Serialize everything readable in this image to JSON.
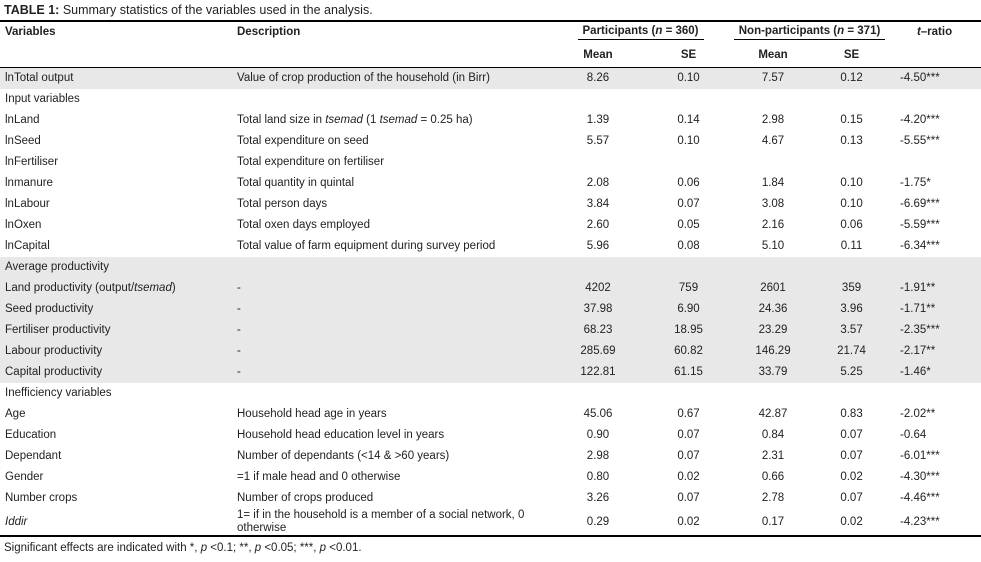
{
  "table_title": {
    "label": "TABLE 1:",
    "text": "Summary statistics of the variables used in the analysis."
  },
  "columns": {
    "variables": "Variables",
    "description": "Description",
    "participants_group": "Participants ([i]n[/i] = 360)",
    "nonparticipants_group": "Non-participants ([i]n[/i] = 371)",
    "mean": "Mean",
    "se": "SE",
    "t_ratio": "[i]t[/i]–ratio"
  },
  "colors": {
    "shaded_row": "#e8e8e8",
    "rule": "#000000",
    "text": "#222222"
  },
  "rows": [
    {
      "shaded": true,
      "variable": "lnTotal output",
      "description": "Value of crop production of the household (in Birr)",
      "p_mean": "8.26",
      "p_se": "0.10",
      "n_mean": "7.57",
      "n_se": "0.12",
      "t_ratio": "-4.50***"
    },
    {
      "shaded": false,
      "section": "Input variables"
    },
    {
      "shaded": false,
      "variable": "lnLand",
      "description": "Total land size in [i]tsemad[/i] (1 [i]tsemad[/i] = 0.25 ha)",
      "p_mean": "1.39",
      "p_se": "0.14",
      "n_mean": "2.98",
      "n_se": "0.15",
      "t_ratio": "-4.20***"
    },
    {
      "shaded": false,
      "variable": "lnSeed",
      "description": "Total expenditure on seed",
      "p_mean": "5.57",
      "p_se": "0.10",
      "n_mean": "4.67",
      "n_se": "0.13",
      "t_ratio": "-5.55***"
    },
    {
      "shaded": false,
      "variable": "lnFertiliser",
      "description": "Total expenditure on fertiliser",
      "p_mean": "",
      "p_se": "",
      "n_mean": "",
      "n_se": "",
      "t_ratio": ""
    },
    {
      "shaded": false,
      "variable": "lnmanure",
      "description": "Total quantity in quintal",
      "p_mean": "2.08",
      "p_se": "0.06",
      "n_mean": "1.84",
      "n_se": "0.10",
      "t_ratio": "-1.75*"
    },
    {
      "shaded": false,
      "variable": "lnLabour",
      "description": "Total person days",
      "p_mean": "3.84",
      "p_se": "0.07",
      "n_mean": "3.08",
      "n_se": "0.10",
      "t_ratio": "-6.69***"
    },
    {
      "shaded": false,
      "variable": "lnOxen",
      "description": "Total oxen days employed",
      "p_mean": "2.60",
      "p_se": "0.05",
      "n_mean": "2.16",
      "n_se": "0.06",
      "t_ratio": "-5.59***"
    },
    {
      "shaded": false,
      "variable": "lnCapital",
      "description": "Total value of farm equipment during survey period",
      "p_mean": "5.96",
      "p_se": "0.08",
      "n_mean": "5.10",
      "n_se": "0.11",
      "t_ratio": "-6.34***"
    },
    {
      "shaded": true,
      "section": "Average productivity"
    },
    {
      "shaded": true,
      "variable": "Land productivity (output/[i]tsemad[/i])",
      "description": "-",
      "p_mean": "4202",
      "p_se": "759",
      "n_mean": "2601",
      "n_se": "359",
      "t_ratio": "-1.91**"
    },
    {
      "shaded": true,
      "variable": "Seed productivity",
      "description": "-",
      "p_mean": "37.98",
      "p_se": "6.90",
      "n_mean": "24.36",
      "n_se": "3.96",
      "t_ratio": "-1.71**"
    },
    {
      "shaded": true,
      "variable": "Fertiliser productivity",
      "description": "-",
      "p_mean": "68.23",
      "p_se": "18.95",
      "n_mean": "23.29",
      "n_se": "3.57",
      "t_ratio": "-2.35***"
    },
    {
      "shaded": true,
      "variable": "Labour productivity",
      "description": "-",
      "p_mean": "285.69",
      "p_se": "60.82",
      "n_mean": "146.29",
      "n_se": "21.74",
      "t_ratio": "-2.17**"
    },
    {
      "shaded": true,
      "variable": "Capital productivity",
      "description": "-",
      "p_mean": "122.81",
      "p_se": "61.15",
      "n_mean": "33.79",
      "n_se": "5.25",
      "t_ratio": "-1.46*"
    },
    {
      "shaded": false,
      "section": "Inefficiency variables"
    },
    {
      "shaded": false,
      "variable": "Age",
      "description": "Household head age in years",
      "p_mean": "45.06",
      "p_se": "0.67",
      "n_mean": "42.87",
      "n_se": "0.83",
      "t_ratio": "-2.02**"
    },
    {
      "shaded": false,
      "variable": "Education",
      "description": "Household head education level in years",
      "p_mean": "0.90",
      "p_se": "0.07",
      "n_mean": "0.84",
      "n_se": "0.07",
      "t_ratio": "-0.64"
    },
    {
      "shaded": false,
      "variable": "Dependant",
      "description": "Number of dependants (<14 & >60 years)",
      "p_mean": "2.98",
      "p_se": "0.07",
      "n_mean": "2.31",
      "n_se": "0.07",
      "t_ratio": "-6.01***"
    },
    {
      "shaded": false,
      "variable": "Gender",
      "description": "=1 if male head and 0 otherwise",
      "p_mean": "0.80",
      "p_se": "0.02",
      "n_mean": "0.66",
      "n_se": "0.02",
      "t_ratio": "-4.30***"
    },
    {
      "shaded": false,
      "variable": "Number crops",
      "description": "Number of crops produced",
      "p_mean": "3.26",
      "p_se": "0.07",
      "n_mean": "2.78",
      "n_se": "0.07",
      "t_ratio": "-4.46***"
    },
    {
      "shaded": false,
      "variable": "[i]Iddir[/i]",
      "description": "1= if in the household is a member of a social network, 0 otherwise",
      "p_mean": "0.29",
      "p_se": "0.02",
      "n_mean": "0.17",
      "n_se": "0.02",
      "t_ratio": "-4.23***"
    }
  ],
  "footnote": "Significant effects are indicated with *, [i]p[/i] <0.1; **, [i]p[/i] <0.05; ***, [i]p[/i] <0.01."
}
